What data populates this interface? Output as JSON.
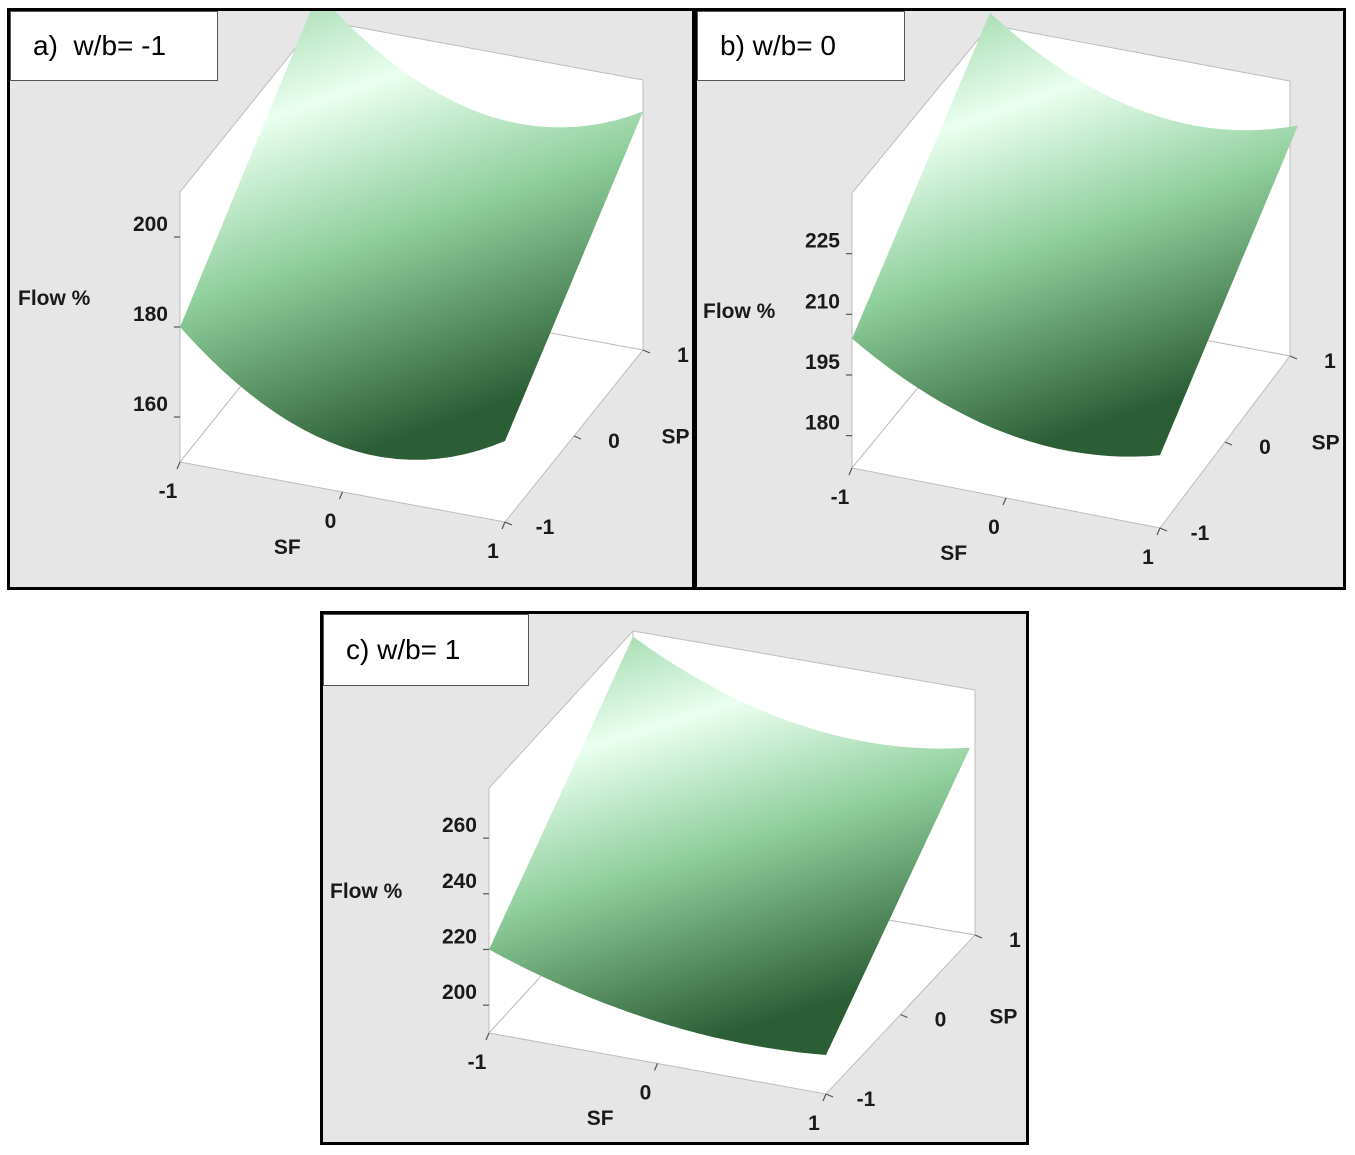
{
  "chart_data": [
    {
      "type": "surface",
      "panel_label": "a)  w/b= -1",
      "xlabel": "SF",
      "ylabel": "SP",
      "zlabel": "Flow %",
      "x_ticks": [
        "-1",
        "0",
        "1"
      ],
      "y_ticks": [
        "-1",
        "0",
        "1"
      ],
      "z_ticks": [
        "160",
        "180",
        "200"
      ],
      "z_tick_values": [
        160,
        180,
        200
      ],
      "zlim": [
        150,
        210
      ],
      "surface_corners": {
        "sf_-1_sp_-1": 180,
        "sf_1_sp_-1": 168,
        "sf_1_sp_1": 203,
        "sf_-1_sp_1": 216,
        "sf_0_sp_-1": 160,
        "sf_0_sp_1": 196
      }
    },
    {
      "type": "surface",
      "panel_label": "b) w/b= 0",
      "xlabel": "SF",
      "ylabel": "SP",
      "zlabel": "Flow %",
      "x_ticks": [
        "-1",
        "0",
        "1"
      ],
      "y_ticks": [
        "-1",
        "0",
        "1"
      ],
      "z_ticks": [
        "180",
        "195",
        "210",
        "225"
      ],
      "z_tick_values": [
        180,
        195,
        210,
        225
      ],
      "zlim": [
        172,
        240
      ],
      "surface_corners": {
        "sf_-1_sp_-1": 204,
        "sf_1_sp_-1": 190,
        "sf_1_sp_1": 230,
        "sf_-1_sp_1": 243,
        "sf_0_sp_-1": 188,
        "sf_0_sp_1": 226
      }
    },
    {
      "type": "surface",
      "panel_label": "c) w/b= 1",
      "xlabel": "SF",
      "ylabel": "SP",
      "zlabel": "Flow %",
      "x_ticks": [
        "-1",
        "0",
        "1"
      ],
      "y_ticks": [
        "-1",
        "0",
        "1"
      ],
      "z_ticks": [
        "200",
        "220",
        "240",
        "260"
      ],
      "z_tick_values": [
        200,
        220,
        240,
        260
      ],
      "zlim": [
        190,
        278
      ],
      "surface_corners": {
        "sf_-1_sp_-1": 220,
        "sf_1_sp_-1": 204,
        "sf_1_sp_1": 258,
        "sf_-1_sp_1": 276,
        "sf_0_sp_-1": 205,
        "sf_0_sp_1": 255
      }
    }
  ],
  "colors": {
    "panel_bg": "#e6e6e6",
    "surface_light": "#eafff0",
    "surface_mid": "#8fcf9c",
    "surface_dark": "#2c5e35"
  }
}
